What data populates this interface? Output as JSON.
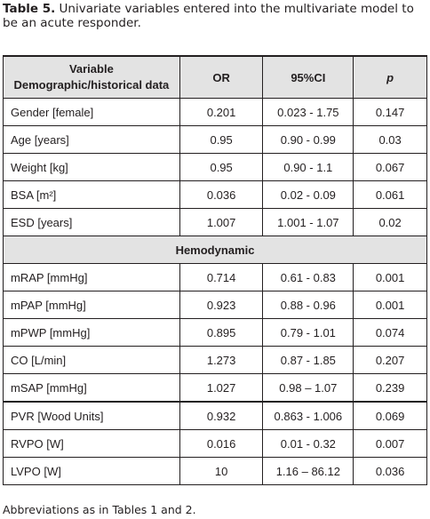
{
  "caption": {
    "label": "Table 5.",
    "text": "Univariate variables entered into the multivariate model to be an acute responder."
  },
  "table": {
    "header": {
      "variable": "Variable",
      "group": "Demographic/historical data",
      "or": "OR",
      "ci": "95%CI",
      "p": "p"
    },
    "rows": [
      [
        "Gender [female]",
        "0.201",
        "0.023 - 1.75",
        "0.147"
      ],
      [
        "Age [years]",
        "0.95",
        "0.90 - 0.99",
        "0.03"
      ],
      [
        "Weight [kg]",
        "0.95",
        "0.90 - 1.1",
        "0.067"
      ],
      [
        "BSA [m²]",
        "0.036",
        "0.02 - 0.09",
        "0.061"
      ],
      [
        "ESD [years]",
        "1.007",
        "1.001 - 1.07",
        "0.02"
      ]
    ],
    "section": {
      "title": "Hemodynamic",
      "rows": [
        [
          "mRAP [mmHg]",
          "0.714",
          "0.61 - 0.83",
          "0.001"
        ],
        [
          "mPAP [mmHg]",
          "0.923",
          "0.88 - 0.96",
          "0.001"
        ],
        [
          "mPWP [mmHg]",
          "0.895",
          "0.79 - 1.01",
          "0.074"
        ],
        [
          "CO [L/min]",
          "1.273",
          "0.87 - 1.85",
          "0.207"
        ],
        [
          "mSAP [mmHg]",
          "1.027",
          "0.98 – 1.07",
          "0.239"
        ],
        [
          "PVR [Wood Units]",
          "0.932",
          "0.863 - 1.006",
          "0.069"
        ],
        [
          "RVPO [W]",
          "0.016",
          "0.01 - 0.32",
          "0.007"
        ],
        [
          "LVPO [W]",
          "10",
          "1.16 – 86.12",
          "0.036"
        ]
      ]
    }
  },
  "footnote": "Abbreviations as in Tables 1 and 2."
}
